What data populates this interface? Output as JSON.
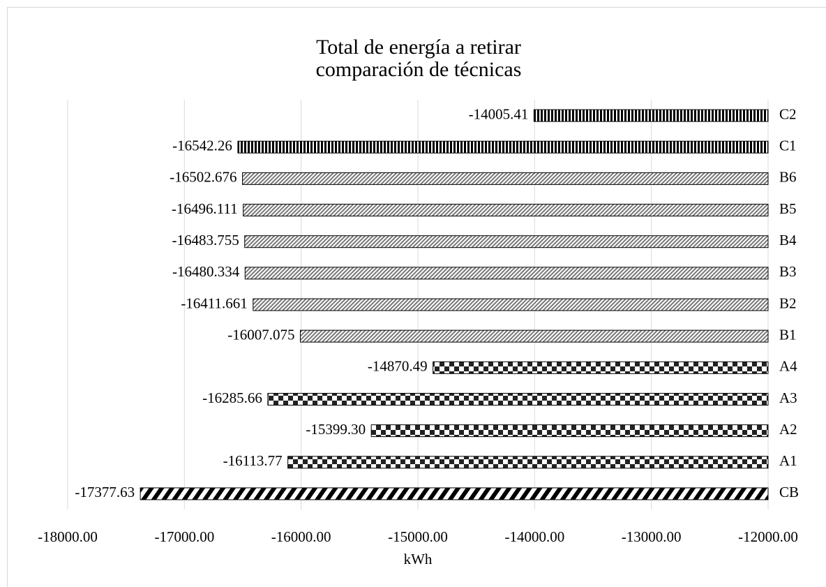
{
  "chart_data": {
    "type": "bar",
    "orientation": "horizontal",
    "title": [
      "Total de energía a retirar",
      "comparación de técnicas"
    ],
    "x_label": "kWh",
    "categories": [
      "CB",
      "A1",
      "A2",
      "A3",
      "A4",
      "B1",
      "B2",
      "B3",
      "B4",
      "B5",
      "B6",
      "C1",
      "C2"
    ],
    "values": [
      -17377.63,
      -16113.77,
      -15399.3,
      -16285.66,
      -14870.49,
      -16007.075,
      -16411.661,
      -16480.334,
      -16483.755,
      -16496.111,
      -16502.676,
      -16542.26,
      -14005.41
    ],
    "value_labels": [
      "-17377.63",
      "-16113.77",
      "-15399.30",
      "-16285.66",
      "-14870.49",
      "-16007.075",
      "-16411.661",
      "-16480.334",
      "-16483.755",
      "-16496.111",
      "-16502.676",
      "-16542.26",
      "-14005.41"
    ],
    "patterns": [
      "wide-diagonal",
      "checker",
      "checker",
      "checker",
      "checker",
      "diagonal",
      "diagonal",
      "diagonal",
      "diagonal",
      "diagonal",
      "diagonal",
      "vertical",
      "vertical"
    ],
    "xlim": [
      -18000,
      -12000
    ],
    "xticks": [
      {
        "value": -18000,
        "label": "-18000.00"
      },
      {
        "value": -17000,
        "label": "-17000.00"
      },
      {
        "value": -16000,
        "label": "-16000.00"
      },
      {
        "value": -15000,
        "label": "-15000.00"
      },
      {
        "value": -14000,
        "label": "-14000.00"
      },
      {
        "value": -13000,
        "label": "-13000.00"
      },
      {
        "value": -12000,
        "label": "-12000.00"
      }
    ],
    "grid": true
  }
}
